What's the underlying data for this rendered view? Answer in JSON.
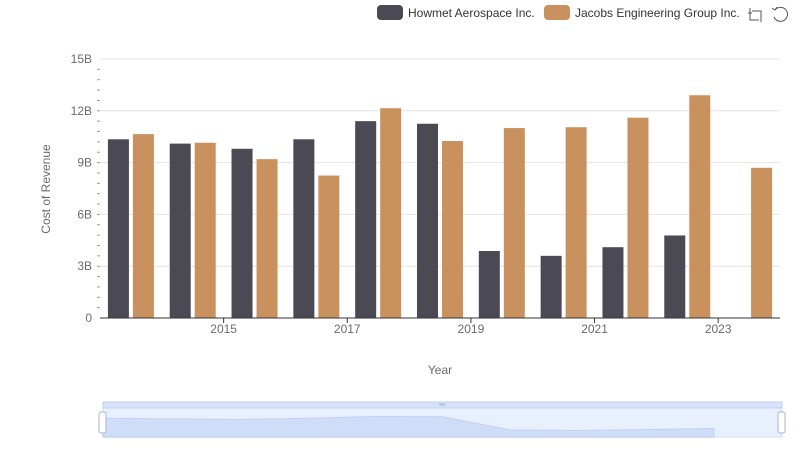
{
  "chart_data": {
    "type": "bar",
    "xlabel": "Year",
    "ylabel": "Cost of Revenue",
    "x": [
      2014,
      2015,
      2016,
      2017,
      2018,
      2019,
      2020,
      2021,
      2022,
      2023,
      2024
    ],
    "x_tick_labels": [
      "2015",
      "2017",
      "2019",
      "2021",
      "2023"
    ],
    "y_tick_labels": [
      "0",
      "3B",
      "6B",
      "9B",
      "12B",
      "15B"
    ],
    "ylim": [
      0,
      15000000000
    ],
    "grid": true,
    "legend_position": "top-right",
    "series": [
      {
        "name": "Howmet Aerospace Inc.",
        "color": "#4a4954",
        "values": [
          10350000000,
          10100000000,
          9800000000,
          10350000000,
          11400000000,
          11250000000,
          3880000000,
          3600000000,
          4100000000,
          4780000000,
          null
        ]
      },
      {
        "name": "Jacobs Engineering Group Inc.",
        "color": "#c9915d",
        "values": [
          10650000000,
          10150000000,
          9200000000,
          8250000000,
          12150000000,
          10250000000,
          11000000000,
          11050000000,
          11600000000,
          12900000000,
          8700000000
        ]
      }
    ]
  },
  "toolbar": {
    "icons": [
      "zoom-icon",
      "restore-icon"
    ]
  },
  "data_zoom": {
    "start_fraction": 0,
    "end_fraction": 1,
    "fill_color": "#d6e2fb",
    "border_color": "#aebfe0"
  }
}
